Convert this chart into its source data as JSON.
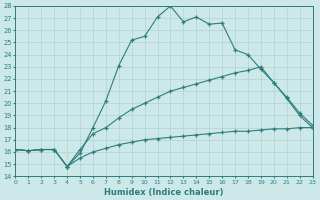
{
  "xlabel": "Humidex (Indice chaleur)",
  "bg_color": "#cde8e8",
  "grid_color": "#aacccc",
  "line_color": "#2e7d7d",
  "ylim": [
    14,
    28
  ],
  "xlim": [
    0,
    23
  ],
  "yticks": [
    14,
    15,
    16,
    17,
    18,
    19,
    20,
    21,
    22,
    23,
    24,
    25,
    26,
    27,
    28
  ],
  "xticks": [
    0,
    1,
    2,
    3,
    4,
    5,
    6,
    7,
    8,
    9,
    10,
    11,
    12,
    13,
    14,
    15,
    16,
    17,
    18,
    19,
    20,
    21,
    22,
    23
  ],
  "line1_x": [
    0,
    1,
    2,
    3,
    4,
    5,
    6,
    7,
    8,
    9,
    10,
    11,
    12,
    13,
    14,
    15,
    16,
    17,
    18,
    19,
    20,
    21,
    22,
    23
  ],
  "line1_y": [
    16.2,
    16.1,
    16.2,
    16.2,
    14.8,
    15.9,
    18.0,
    20.2,
    23.1,
    25.2,
    25.5,
    27.1,
    28.0,
    26.7,
    27.1,
    26.5,
    26.6,
    24.4,
    24.0,
    22.8,
    21.7,
    20.4,
    19.0,
    18.0
  ],
  "line2_x": [
    0,
    1,
    2,
    3,
    4,
    5,
    6,
    7,
    8,
    9,
    10,
    11,
    12,
    13,
    14,
    15,
    16,
    17,
    18,
    19,
    20,
    21,
    22,
    23
  ],
  "line2_y": [
    16.2,
    16.1,
    16.2,
    16.2,
    14.8,
    16.2,
    17.5,
    18.0,
    18.8,
    19.5,
    20.0,
    20.5,
    21.0,
    21.3,
    21.6,
    21.9,
    22.2,
    22.5,
    22.7,
    23.0,
    21.7,
    20.5,
    19.2,
    18.2
  ],
  "line3_x": [
    0,
    1,
    2,
    3,
    4,
    5,
    6,
    7,
    8,
    9,
    10,
    11,
    12,
    13,
    14,
    15,
    16,
    17,
    18,
    19,
    20,
    21,
    22,
    23
  ],
  "line3_y": [
    16.2,
    16.1,
    16.2,
    16.2,
    14.8,
    15.5,
    16.0,
    16.3,
    16.6,
    16.8,
    17.0,
    17.1,
    17.2,
    17.3,
    17.4,
    17.5,
    17.6,
    17.7,
    17.7,
    17.8,
    17.9,
    17.9,
    18.0,
    18.0
  ]
}
